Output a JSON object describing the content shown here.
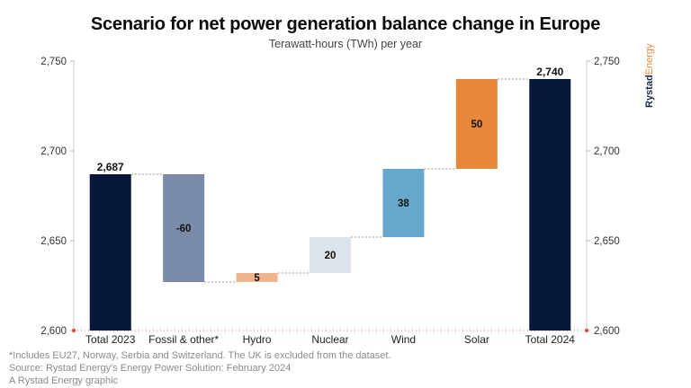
{
  "header": {
    "title": "Scenario for net power generation balance change in Europe",
    "subtitle": "Terawatt-hours (TWh) per year"
  },
  "brand": {
    "part1": "Rystad",
    "part2": "Energy"
  },
  "chart_data": {
    "type": "bar",
    "subtype": "waterfall",
    "title": "Scenario for net power generation balance change in Europe",
    "subtitle": "Terawatt-hours (TWh) per year",
    "categories": [
      "Total 2023",
      "Fossil & other*",
      "Hydro",
      "Nuclear",
      "Wind",
      "Solar",
      "Total 2024"
    ],
    "values": [
      2687,
      -60,
      5,
      20,
      38,
      50,
      2740
    ],
    "kinds": [
      "total",
      "delta",
      "delta",
      "delta",
      "delta",
      "delta",
      "total"
    ],
    "value_labels": [
      "2,687",
      "-60",
      "5",
      "20",
      "38",
      "50",
      "2,740"
    ],
    "colors": [
      "#07183a",
      "#7a8aab",
      "#f0b48c",
      "#dce3ea",
      "#66a9cc",
      "#e8883b",
      "#07183a"
    ],
    "ylim": [
      2600,
      2750
    ],
    "yticks": [
      2600,
      2650,
      2700,
      2750
    ],
    "ytick_labels": [
      "2,600",
      "2,650",
      "2,700",
      "2,750"
    ],
    "right_axis": true,
    "grid": false
  },
  "footnotes": [
    "*Includes EU27, Norway, Serbia and Switzerland. The UK is excluded from the dataset.",
    "Source: Rystad Energy's Energy Power Solution: February 2024",
    "A Rystad Energy graphic"
  ]
}
